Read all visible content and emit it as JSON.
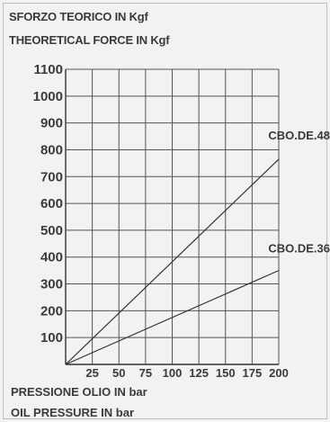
{
  "chart_data": {
    "type": "line",
    "title": "SFORZO TEORICO IN Kgf",
    "subtitle": "THEORETICAL FORCE IN Kgf",
    "xlabel": "PRESSIONE OLIO IN bar",
    "xlabel_secondary": "OIL PRESSURE IN bar",
    "xlim": [
      0,
      200
    ],
    "ylim": [
      0,
      1100
    ],
    "x_ticks": [
      25,
      50,
      75,
      100,
      125,
      150,
      175,
      200
    ],
    "y_ticks": [
      100,
      200,
      300,
      400,
      500,
      600,
      700,
      800,
      900,
      1000,
      1100
    ],
    "grid": true,
    "series": [
      {
        "name": "CBO.DE.48",
        "x": [
          0,
          200
        ],
        "y": [
          0,
          765
        ]
      },
      {
        "name": "CBO.DE.36",
        "x": [
          0,
          200
        ],
        "y": [
          0,
          350
        ]
      }
    ],
    "colors": {
      "line": "#333333",
      "grid": "#555555",
      "text": "#3a3a3a",
      "background": "#f2f2f2"
    }
  }
}
